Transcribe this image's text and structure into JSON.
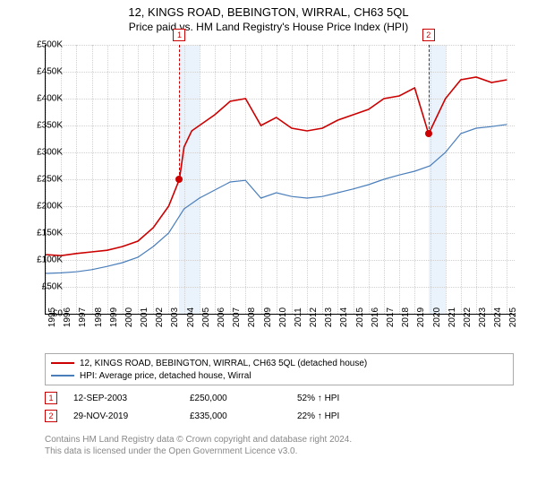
{
  "title_line1": "12, KINGS ROAD, BEBINGTON, WIRRAL, CH63 5QL",
  "title_line2": "Price paid vs. HM Land Registry's House Price Index (HPI)",
  "chart": {
    "type": "line",
    "xlim": [
      1995,
      2025.5
    ],
    "ylim": [
      0,
      500000
    ],
    "ytick_step": 50000,
    "yticks": [
      "£0",
      "£50K",
      "£100K",
      "£150K",
      "£200K",
      "£250K",
      "£300K",
      "£350K",
      "£400K",
      "£450K",
      "£500K"
    ],
    "xticks": [
      1995,
      1996,
      1997,
      1998,
      1999,
      2000,
      2001,
      2002,
      2003,
      2004,
      2005,
      2006,
      2007,
      2008,
      2009,
      2010,
      2011,
      2012,
      2013,
      2014,
      2015,
      2016,
      2017,
      2018,
      2019,
      2020,
      2021,
      2022,
      2023,
      2024,
      2025
    ],
    "background_color": "#ffffff",
    "grid_color": "#d0d0d0",
    "shade_color": "#eaf2fb",
    "shade_ranges": [
      [
        2003.7,
        2005.0
      ],
      [
        2019.9,
        2021.0
      ]
    ],
    "series": [
      {
        "name": "property",
        "label": "12, KINGS ROAD, BEBINGTON, WIRRAL, CH63 5QL (detached house)",
        "color": "#cc0000",
        "line_width": 1.6,
        "data": [
          [
            1995,
            110000
          ],
          [
            1996,
            108000
          ],
          [
            1997,
            112000
          ],
          [
            1998,
            115000
          ],
          [
            1999,
            118000
          ],
          [
            2000,
            125000
          ],
          [
            2001,
            135000
          ],
          [
            2002,
            160000
          ],
          [
            2003,
            200000
          ],
          [
            2003.7,
            250000
          ],
          [
            2004,
            310000
          ],
          [
            2004.5,
            340000
          ],
          [
            2005,
            350000
          ],
          [
            2006,
            370000
          ],
          [
            2007,
            395000
          ],
          [
            2008,
            400000
          ],
          [
            2009,
            350000
          ],
          [
            2010,
            365000
          ],
          [
            2011,
            345000
          ],
          [
            2012,
            340000
          ],
          [
            2013,
            345000
          ],
          [
            2014,
            360000
          ],
          [
            2015,
            370000
          ],
          [
            2016,
            380000
          ],
          [
            2017,
            400000
          ],
          [
            2018,
            405000
          ],
          [
            2019,
            420000
          ],
          [
            2019.9,
            335000
          ],
          [
            2020,
            340000
          ],
          [
            2020.5,
            370000
          ],
          [
            2021,
            400000
          ],
          [
            2022,
            435000
          ],
          [
            2023,
            440000
          ],
          [
            2024,
            430000
          ],
          [
            2025,
            435000
          ]
        ]
      },
      {
        "name": "hpi",
        "label": "HPI: Average price, detached house, Wirral",
        "color": "#4a7ebb",
        "line_width": 1.2,
        "data": [
          [
            1995,
            75000
          ],
          [
            1996,
            76000
          ],
          [
            1997,
            78000
          ],
          [
            1998,
            82000
          ],
          [
            1999,
            88000
          ],
          [
            2000,
            95000
          ],
          [
            2001,
            105000
          ],
          [
            2002,
            125000
          ],
          [
            2003,
            150000
          ],
          [
            2004,
            195000
          ],
          [
            2005,
            215000
          ],
          [
            2006,
            230000
          ],
          [
            2007,
            245000
          ],
          [
            2008,
            248000
          ],
          [
            2009,
            215000
          ],
          [
            2010,
            225000
          ],
          [
            2011,
            218000
          ],
          [
            2012,
            215000
          ],
          [
            2013,
            218000
          ],
          [
            2014,
            225000
          ],
          [
            2015,
            232000
          ],
          [
            2016,
            240000
          ],
          [
            2017,
            250000
          ],
          [
            2018,
            258000
          ],
          [
            2019,
            265000
          ],
          [
            2020,
            275000
          ],
          [
            2021,
            300000
          ],
          [
            2022,
            335000
          ],
          [
            2023,
            345000
          ],
          [
            2024,
            348000
          ],
          [
            2025,
            352000
          ]
        ]
      }
    ],
    "markers": [
      {
        "id": "1",
        "x": 2003.7,
        "y": 250000
      },
      {
        "id": "2",
        "x": 2019.9,
        "y": 335000
      }
    ]
  },
  "legend": {
    "items": [
      {
        "label_key": "chart.series.0.label",
        "color": "#cc0000"
      },
      {
        "label_key": "chart.series.1.label",
        "color": "#4a7ebb"
      }
    ]
  },
  "sales": [
    {
      "id": "1",
      "date": "12-SEP-2003",
      "price": "£250,000",
      "delta": "52% ↑ HPI"
    },
    {
      "id": "2",
      "date": "29-NOV-2019",
      "price": "£335,000",
      "delta": "22% ↑ HPI"
    }
  ],
  "attribution_line1": "Contains HM Land Registry data © Crown copyright and database right 2024.",
  "attribution_line2": "This data is licensed under the Open Government Licence v3.0."
}
